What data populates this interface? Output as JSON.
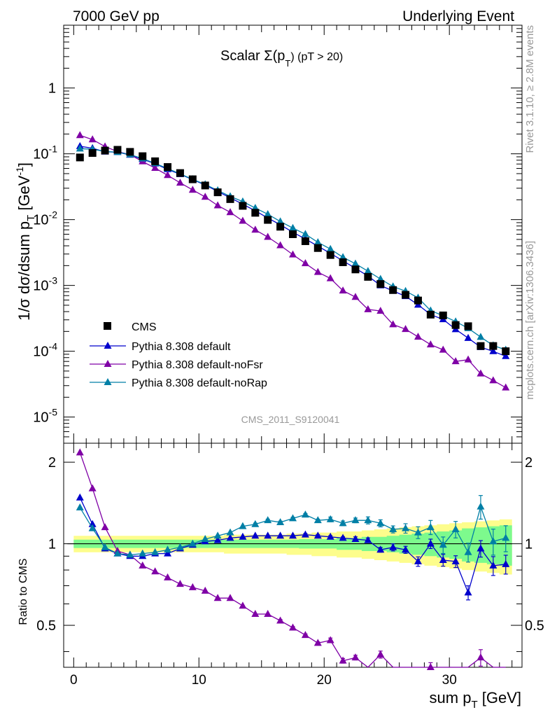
{
  "header": {
    "left": "7000 GeV pp",
    "right": "Underlying Event"
  },
  "side": {
    "rivet": "Rivet 3.1.10, ≥ 2.8M events",
    "mcplots": "mcplots.cern.ch [arXiv:1306.3436]"
  },
  "chart_data": {
    "type": "scatter",
    "title_main": "Scalar Σ(p",
    "title_sub": "T",
    "title_tail": ") (pT > 20)",
    "analysis_label": "CMS_2011_S9120041",
    "ylabel_top": "1/σ dσ/dsum p",
    "ylabel_top_sub": "T",
    "ylabel_top_unit": " [GeV",
    "ylabel_top_sup": "-1",
    "ylabel_top_close": "]",
    "ylabel_ratio": "Ratio to CMS",
    "xlabel_main": "sum p",
    "xlabel_sub": "T",
    "xlabel_unit": " [GeV]",
    "top_ylim": [
      4e-06,
      9
    ],
    "ratio_ylim": [
      0.35,
      2.35
    ],
    "xlim": [
      -0.8,
      35.8
    ],
    "x_ticks": [
      0,
      10,
      20,
      30
    ],
    "x_tick_labels": [
      "0",
      "10",
      "20",
      "30"
    ],
    "top_y_ticks": [
      1,
      0.1,
      0.01,
      0.001,
      0.0001,
      1e-05
    ],
    "top_y_tick_labels": [
      {
        "base": "1",
        "exp": ""
      },
      {
        "base": "10",
        "exp": "-1"
      },
      {
        "base": "10",
        "exp": "-2"
      },
      {
        "base": "10",
        "exp": "-3"
      },
      {
        "base": "10",
        "exp": "-4"
      },
      {
        "base": "10",
        "exp": "-5"
      }
    ],
    "ratio_y_ticks": [
      0.5,
      1,
      2
    ],
    "ratio_y_tick_labels": [
      "0.5",
      "1",
      "2"
    ],
    "x": [
      0.5,
      1.5,
      2.5,
      3.5,
      4.5,
      5.5,
      6.5,
      7.5,
      8.5,
      9.5,
      10.5,
      11.5,
      12.5,
      13.5,
      14.5,
      15.5,
      16.5,
      17.5,
      18.5,
      19.5,
      20.5,
      21.5,
      22.5,
      23.5,
      24.5,
      25.5,
      26.5,
      27.5,
      28.5,
      29.5,
      30.5,
      31.5,
      32.5,
      33.5,
      34.5
    ],
    "data": {
      "name": "CMS",
      "color": "#000000",
      "values": [
        0.088,
        0.103,
        0.112,
        0.115,
        0.107,
        0.092,
        0.077,
        0.063,
        0.051,
        0.041,
        0.033,
        0.026,
        0.0205,
        0.0162,
        0.0127,
        0.0099,
        0.0078,
        0.006,
        0.0047,
        0.0037,
        0.0029,
        0.00225,
        0.00175,
        0.00135,
        0.00105,
        0.00085,
        0.00072,
        0.00059,
        0.00036,
        0.00035,
        0.00025,
        0.00024,
        0.00012,
        0.00012,
        0.0001
      ]
    },
    "series": [
      {
        "name": "Pythia 8.308 default",
        "color": "#0000cc",
        "ratio": [
          1.48,
          1.18,
          0.96,
          0.92,
          0.9,
          0.9,
          0.92,
          0.92,
          0.96,
          0.99,
          1.02,
          1.03,
          1.05,
          1.06,
          1.07,
          1.07,
          1.07,
          1.07,
          1.08,
          1.07,
          1.06,
          1.05,
          1.04,
          1.03,
          0.95,
          0.97,
          0.95,
          0.86,
          1.0,
          0.87,
          0.86,
          0.66,
          0.96,
          0.83,
          0.84
        ],
        "ratio_err": [
          0,
          0,
          0,
          0,
          0,
          0,
          0,
          0,
          0,
          0,
          0,
          0,
          0,
          0,
          0,
          0,
          0,
          0,
          0.01,
          0.01,
          0.01,
          0.01,
          0.02,
          0.02,
          0.02,
          0.03,
          0.03,
          0.04,
          0.04,
          0.05,
          0.05,
          0.06,
          0.07,
          0.08,
          0.08
        ]
      },
      {
        "name": "Pythia 8.308 default-noFsr",
        "color": "#7f00a6",
        "ratio": [
          2.17,
          1.6,
          1.15,
          0.94,
          0.91,
          0.83,
          0.79,
          0.75,
          0.71,
          0.69,
          0.67,
          0.63,
          0.63,
          0.59,
          0.55,
          0.55,
          0.52,
          0.49,
          0.46,
          0.43,
          0.44,
          0.37,
          0.38,
          0.32,
          0.39,
          0.3,
          0.3,
          0.28,
          0.35,
          0.3,
          0.28,
          0.31,
          0.38,
          0.3,
          0.28
        ],
        "ratio_err": [
          0,
          0,
          0,
          0,
          0,
          0,
          0,
          0,
          0,
          0,
          0,
          0,
          0,
          0,
          0,
          0,
          0.01,
          0.01,
          0.01,
          0.01,
          0.02,
          0.02,
          0.02,
          0.02,
          0.03,
          0.03,
          0.03,
          0.04,
          0.04,
          0.05,
          0.05,
          0.06,
          0.07,
          0.07,
          0.08
        ]
      },
      {
        "name": "Pythia 8.308 default-noRap",
        "color": "#007fa6",
        "ratio": [
          1.36,
          1.14,
          0.97,
          0.92,
          0.91,
          0.92,
          0.93,
          0.95,
          0.97,
          1.0,
          1.04,
          1.07,
          1.1,
          1.16,
          1.18,
          1.22,
          1.2,
          1.24,
          1.28,
          1.22,
          1.23,
          1.19,
          1.22,
          1.22,
          1.19,
          1.13,
          1.14,
          1.1,
          1.15,
          0.99,
          1.13,
          0.93,
          1.37,
          1.02,
          1.05
        ],
        "ratio_err": [
          0,
          0,
          0,
          0,
          0,
          0,
          0,
          0,
          0,
          0,
          0,
          0,
          0,
          0,
          0.01,
          0.01,
          0.01,
          0.01,
          0.01,
          0.01,
          0.02,
          0.02,
          0.02,
          0.03,
          0.03,
          0.03,
          0.04,
          0.05,
          0.06,
          0.07,
          0.07,
          0.08,
          0.1,
          0.11,
          0.11
        ]
      }
    ],
    "band_colors": {
      "inner": "#7dfa8d",
      "outer": "#fdfd8c"
    },
    "band_inner": [
      0.035,
      0.035,
      0.035,
      0.035,
      0.035,
      0.035,
      0.035,
      0.035,
      0.035,
      0.035,
      0.035,
      0.035,
      0.035,
      0.035,
      0.035,
      0.035,
      0.035,
      0.035,
      0.04,
      0.04,
      0.04,
      0.05,
      0.05,
      0.06,
      0.06,
      0.07,
      0.08,
      0.09,
      0.1,
      0.11,
      0.12,
      0.14,
      0.15,
      0.16,
      0.17
    ],
    "band_outer": [
      0.07,
      0.07,
      0.07,
      0.07,
      0.07,
      0.07,
      0.07,
      0.07,
      0.07,
      0.07,
      0.07,
      0.07,
      0.08,
      0.08,
      0.08,
      0.08,
      0.08,
      0.09,
      0.09,
      0.1,
      0.1,
      0.11,
      0.11,
      0.12,
      0.13,
      0.14,
      0.15,
      0.16,
      0.17,
      0.18,
      0.19,
      0.2,
      0.21,
      0.22,
      0.23
    ],
    "legend_position": "lower-left"
  }
}
